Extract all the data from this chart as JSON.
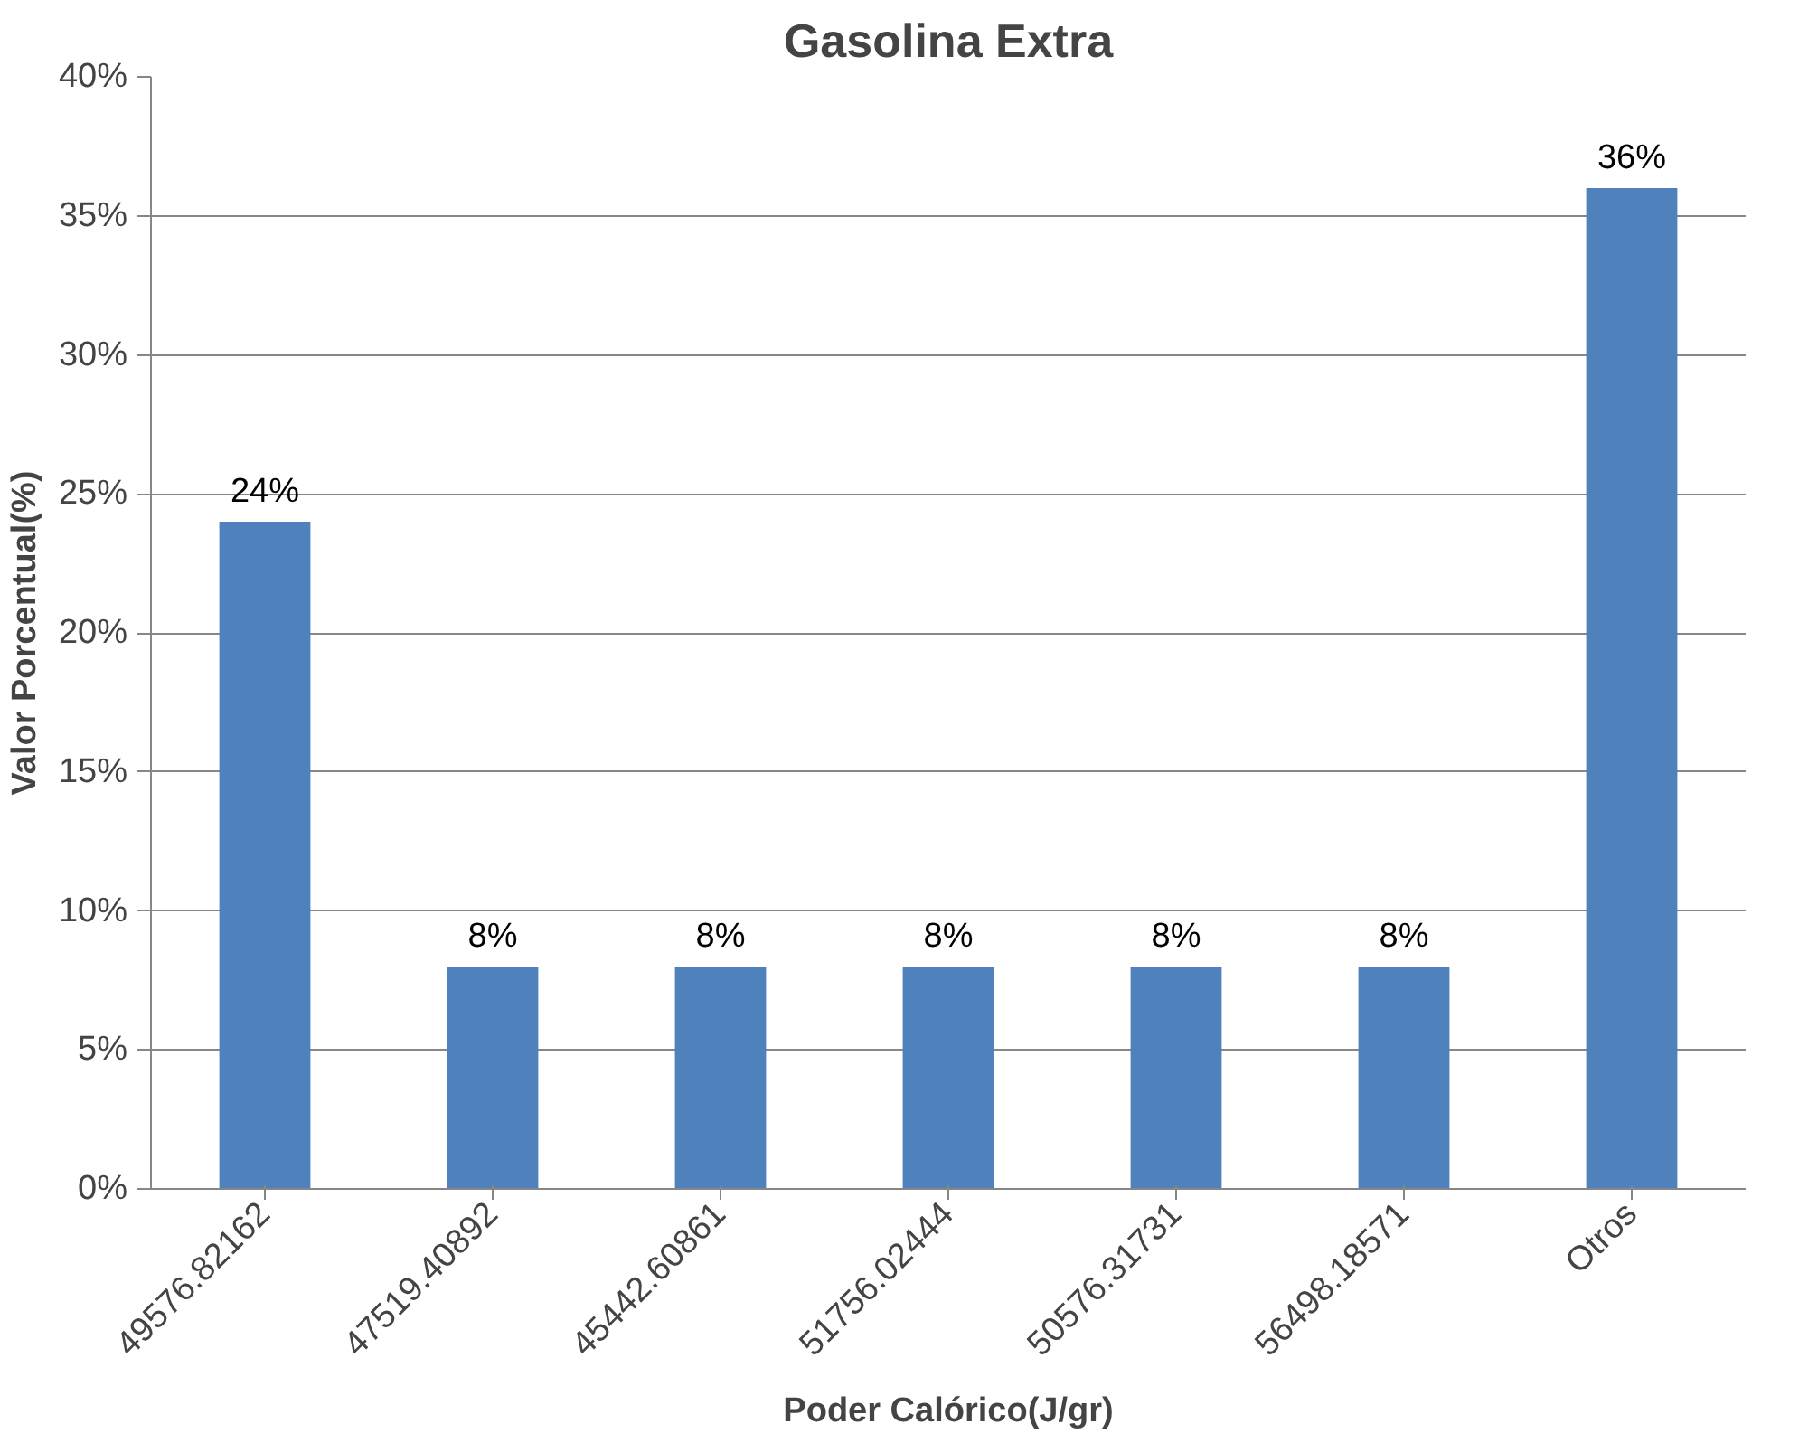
{
  "chart_data": {
    "type": "bar",
    "title": "Gasolina Extra",
    "xlabel": "Poder Calórico(J/gr)",
    "ylabel": "Valor Porcentual(%)",
    "categories": [
      "49576.82162",
      "47519.40892",
      "45442.60861",
      "51756.02444",
      "50576.31731",
      "56498.18571",
      "Otros"
    ],
    "values": [
      24,
      8,
      8,
      8,
      8,
      8,
      36
    ],
    "value_labels": [
      "24%",
      "8%",
      "8%",
      "8%",
      "8%",
      "8%",
      "36%"
    ],
    "color": "#4f81bd",
    "ylim": [
      0,
      40
    ],
    "yticks": [
      {
        "value": 0,
        "label": "0%"
      },
      {
        "value": 5,
        "label": "5%"
      },
      {
        "value": 10,
        "label": "10%"
      },
      {
        "value": 15,
        "label": "15%"
      },
      {
        "value": 20,
        "label": "20%"
      },
      {
        "value": 25,
        "label": "25%"
      },
      {
        "value": 30,
        "label": "30%"
      },
      {
        "value": 35,
        "label": "35%"
      },
      {
        "value": 40,
        "label": "40%"
      }
    ],
    "grid": "y"
  }
}
